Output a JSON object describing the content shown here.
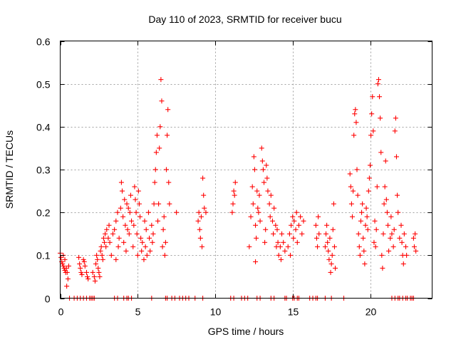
{
  "chart_data": {
    "type": "scatter",
    "title": "Day 110 of 2023, SRMTID for receiver bucu",
    "xlabel": "GPS time / hours",
    "ylabel": "SRMTID / TECUs",
    "xlim": [
      0,
      24
    ],
    "ylim": [
      0,
      0.6
    ],
    "xticks": [
      0,
      5,
      10,
      15,
      20
    ],
    "xtick_labels": [
      "0",
      "5",
      "10",
      "15",
      "20"
    ],
    "yticks": [
      0,
      0.1,
      0.2,
      0.3,
      0.4,
      0.5,
      0.6
    ],
    "ytick_labels": [
      "0",
      "0.1",
      "0.2",
      "0.3",
      "0.4",
      "0.5",
      "0.6"
    ],
    "grid": true,
    "marker": "plus",
    "series": [
      {
        "name": "SRMTID",
        "color": "#ff0000",
        "points": [
          [
            0.0,
            0.105
          ],
          [
            0.05,
            0.095
          ],
          [
            0.1,
            0.085
          ],
          [
            0.15,
            0.08
          ],
          [
            0.2,
            0.075
          ],
          [
            0.25,
            0.07
          ],
          [
            0.3,
            0.065
          ],
          [
            0.35,
            0.06
          ],
          [
            0.4,
            0.07
          ],
          [
            0.45,
            0.06
          ],
          [
            0.5,
            0.045
          ],
          [
            0.42,
            0.028
          ],
          [
            0.55,
            0.075
          ],
          [
            0.3,
            0.09
          ],
          [
            0.2,
            0.1
          ],
          [
            1.2,
            0.095
          ],
          [
            1.25,
            0.08
          ],
          [
            1.3,
            0.07
          ],
          [
            1.35,
            0.06
          ],
          [
            1.4,
            0.055
          ],
          [
            1.5,
            0.09
          ],
          [
            1.55,
            0.085
          ],
          [
            1.6,
            0.075
          ],
          [
            1.7,
            0.06
          ],
          [
            1.75,
            0.05
          ],
          [
            1.8,
            0.045
          ],
          [
            2.1,
            0.06
          ],
          [
            2.2,
            0.05
          ],
          [
            2.25,
            0.04
          ],
          [
            2.3,
            0.08
          ],
          [
            2.35,
            0.1
          ],
          [
            2.4,
            0.09
          ],
          [
            2.45,
            0.07
          ],
          [
            2.5,
            0.06
          ],
          [
            2.55,
            0.05
          ],
          [
            2.6,
            0.11
          ],
          [
            2.65,
            0.12
          ],
          [
            2.7,
            0.1
          ],
          [
            2.75,
            0.09
          ],
          [
            2.8,
            0.14
          ],
          [
            2.85,
            0.13
          ],
          [
            2.9,
            0.15
          ],
          [
            2.95,
            0.12
          ],
          [
            3.0,
            0.16
          ],
          [
            3.1,
            0.14
          ],
          [
            3.15,
            0.17
          ],
          [
            3.2,
            0.13
          ],
          [
            3.3,
            0.1
          ],
          [
            3.4,
            0.15
          ],
          [
            3.5,
            0.16
          ],
          [
            3.6,
            0.18
          ],
          [
            3.7,
            0.2
          ],
          [
            3.75,
            0.12
          ],
          [
            3.8,
            0.14
          ],
          [
            3.9,
            0.21
          ],
          [
            3.95,
            0.27
          ],
          [
            4.0,
            0.25
          ],
          [
            4.05,
            0.19
          ],
          [
            4.1,
            0.13
          ],
          [
            4.15,
            0.23
          ],
          [
            4.2,
            0.17
          ],
          [
            4.3,
            0.22
          ],
          [
            4.35,
            0.16
          ],
          [
            4.4,
            0.21
          ],
          [
            4.45,
            0.15
          ],
          [
            4.5,
            0.2
          ],
          [
            4.55,
            0.24
          ],
          [
            4.6,
            0.18
          ],
          [
            4.7,
            0.12
          ],
          [
            4.75,
            0.17
          ],
          [
            4.8,
            0.26
          ],
          [
            4.85,
            0.23
          ],
          [
            4.9,
            0.2
          ],
          [
            4.95,
            0.15
          ],
          [
            5.0,
            0.1
          ],
          [
            5.05,
            0.25
          ],
          [
            5.1,
            0.22
          ],
          [
            5.15,
            0.19
          ],
          [
            5.2,
            0.14
          ],
          [
            5.25,
            0.11
          ],
          [
            5.3,
            0.13
          ],
          [
            5.4,
            0.09
          ],
          [
            5.5,
            0.12
          ],
          [
            5.55,
            0.16
          ],
          [
            5.6,
            0.1
          ],
          [
            5.7,
            0.2
          ],
          [
            5.75,
            0.14
          ],
          [
            5.8,
            0.11
          ],
          [
            5.9,
            0.17
          ],
          [
            5.95,
            0.13
          ],
          [
            6.0,
            0.15
          ],
          [
            6.05,
            0.22
          ],
          [
            6.1,
            0.27
          ],
          [
            6.15,
            0.3
          ],
          [
            6.2,
            0.34
          ],
          [
            6.25,
            0.38
          ],
          [
            6.3,
            0.18
          ],
          [
            6.35,
            0.22
          ],
          [
            6.4,
            0.35
          ],
          [
            6.45,
            0.4
          ],
          [
            6.5,
            0.51
          ],
          [
            6.55,
            0.46
          ],
          [
            6.6,
            0.12
          ],
          [
            6.65,
            0.16
          ],
          [
            6.7,
            0.19
          ],
          [
            6.75,
            0.1
          ],
          [
            6.8,
            0.13
          ],
          [
            6.85,
            0.3
          ],
          [
            6.9,
            0.38
          ],
          [
            6.95,
            0.44
          ],
          [
            7.0,
            0.27
          ],
          [
            7.05,
            0.22
          ],
          [
            7.5,
            0.2
          ],
          [
            3.6,
            0.09
          ],
          [
            4.25,
            0.11
          ],
          [
            5.45,
            0.18
          ],
          [
            8.9,
            0.18
          ],
          [
            8.95,
            0.2
          ],
          [
            9.0,
            0.16
          ],
          [
            9.05,
            0.14
          ],
          [
            9.1,
            0.19
          ],
          [
            9.15,
            0.12
          ],
          [
            9.2,
            0.28
          ],
          [
            9.25,
            0.24
          ],
          [
            9.3,
            0.21
          ],
          [
            9.4,
            0.2
          ],
          [
            11.1,
            0.2
          ],
          [
            11.15,
            0.22
          ],
          [
            11.2,
            0.25
          ],
          [
            11.25,
            0.24
          ],
          [
            11.3,
            0.27
          ],
          [
            12.2,
            0.12
          ],
          [
            12.3,
            0.19
          ],
          [
            12.4,
            0.26
          ],
          [
            12.45,
            0.22
          ],
          [
            12.5,
            0.33
          ],
          [
            12.55,
            0.3
          ],
          [
            12.6,
            0.17
          ],
          [
            12.65,
            0.14
          ],
          [
            12.7,
            0.25
          ],
          [
            12.75,
            0.21
          ],
          [
            12.8,
            0.2
          ],
          [
            12.85,
            0.24
          ],
          [
            12.9,
            0.18
          ],
          [
            13.0,
            0.35
          ],
          [
            13.05,
            0.32
          ],
          [
            13.1,
            0.3
          ],
          [
            13.15,
            0.27
          ],
          [
            13.2,
            0.13
          ],
          [
            13.25,
            0.16
          ],
          [
            13.3,
            0.31
          ],
          [
            13.35,
            0.28
          ],
          [
            13.4,
            0.25
          ],
          [
            13.5,
            0.22
          ],
          [
            13.55,
            0.19
          ],
          [
            13.6,
            0.24
          ],
          [
            13.7,
            0.18
          ],
          [
            13.75,
            0.15
          ],
          [
            13.8,
            0.21
          ],
          [
            13.9,
            0.17
          ],
          [
            13.95,
            0.12
          ],
          [
            14.0,
            0.16
          ],
          [
            14.05,
            0.13
          ],
          [
            14.1,
            0.1
          ],
          [
            14.2,
            0.12
          ],
          [
            14.25,
            0.09
          ],
          [
            14.3,
            0.15
          ],
          [
            14.4,
            0.13
          ],
          [
            14.5,
            0.11
          ],
          [
            12.6,
            0.085
          ],
          [
            14.7,
            0.12
          ],
          [
            14.8,
            0.15
          ],
          [
            14.85,
            0.1
          ],
          [
            14.9,
            0.17
          ],
          [
            15.0,
            0.19
          ],
          [
            15.05,
            0.14
          ],
          [
            15.1,
            0.18
          ],
          [
            15.2,
            0.16
          ],
          [
            15.25,
            0.2
          ],
          [
            15.3,
            0.13
          ],
          [
            15.4,
            0.17
          ],
          [
            15.5,
            0.19
          ],
          [
            15.6,
            0.15
          ],
          [
            15.7,
            0.18
          ],
          [
            16.5,
            0.17
          ],
          [
            16.55,
            0.14
          ],
          [
            16.6,
            0.12
          ],
          [
            16.65,
            0.19
          ],
          [
            16.7,
            0.15
          ],
          [
            17.1,
            0.12
          ],
          [
            17.15,
            0.15
          ],
          [
            17.2,
            0.17
          ],
          [
            17.25,
            0.13
          ],
          [
            17.3,
            0.11
          ],
          [
            17.35,
            0.09
          ],
          [
            17.4,
            0.14
          ],
          [
            17.45,
            0.06
          ],
          [
            17.5,
            0.08
          ],
          [
            17.55,
            0.1
          ],
          [
            17.6,
            0.16
          ],
          [
            17.65,
            0.22
          ],
          [
            17.7,
            0.12
          ],
          [
            17.75,
            0.07
          ],
          [
            18.7,
            0.29
          ],
          [
            18.75,
            0.26
          ],
          [
            18.8,
            0.22
          ],
          [
            18.85,
            0.19
          ],
          [
            18.9,
            0.25
          ],
          [
            18.95,
            0.38
          ],
          [
            19.0,
            0.43
          ],
          [
            19.05,
            0.44
          ],
          [
            19.1,
            0.41
          ],
          [
            19.15,
            0.3
          ],
          [
            19.2,
            0.24
          ],
          [
            19.25,
            0.15
          ],
          [
            19.3,
            0.12
          ],
          [
            19.35,
            0.1
          ],
          [
            19.4,
            0.18
          ],
          [
            19.45,
            0.2
          ],
          [
            19.5,
            0.22
          ],
          [
            19.55,
            0.14
          ],
          [
            19.6,
            0.11
          ],
          [
            19.65,
            0.08
          ],
          [
            19.7,
            0.17
          ],
          [
            19.75,
            0.21
          ],
          [
            19.8,
            0.19
          ],
          [
            19.85,
            0.16
          ],
          [
            19.9,
            0.25
          ],
          [
            19.95,
            0.28
          ],
          [
            20.0,
            0.31
          ],
          [
            20.05,
            0.38
          ],
          [
            20.1,
            0.43
          ],
          [
            20.15,
            0.47
          ],
          [
            20.2,
            0.39
          ],
          [
            20.25,
            0.13
          ],
          [
            20.3,
            0.18
          ],
          [
            20.35,
            0.12
          ],
          [
            20.4,
            0.16
          ],
          [
            20.45,
            0.26
          ],
          [
            20.5,
            0.5
          ],
          [
            20.55,
            0.51
          ],
          [
            20.6,
            0.47
          ],
          [
            20.65,
            0.42
          ],
          [
            20.7,
            0.34
          ],
          [
            20.75,
            0.1
          ],
          [
            20.8,
            0.07
          ],
          [
            20.85,
            0.15
          ],
          [
            20.9,
            0.22
          ],
          [
            20.95,
            0.26
          ],
          [
            21.0,
            0.32
          ],
          [
            21.05,
            0.23
          ],
          [
            21.1,
            0.2
          ],
          [
            21.15,
            0.17
          ],
          [
            21.2,
            0.11
          ],
          [
            21.3,
            0.14
          ],
          [
            21.35,
            0.19
          ],
          [
            21.4,
            0.15
          ],
          [
            21.5,
            0.12
          ],
          [
            21.55,
            0.16
          ],
          [
            21.6,
            0.39
          ],
          [
            21.65,
            0.42
          ],
          [
            21.7,
            0.33
          ],
          [
            21.75,
            0.24
          ],
          [
            21.8,
            0.2
          ],
          [
            21.9,
            0.14
          ],
          [
            22.0,
            0.17
          ],
          [
            22.05,
            0.13
          ],
          [
            22.1,
            0.1
          ],
          [
            22.15,
            0.08
          ],
          [
            22.2,
            0.15
          ],
          [
            22.3,
            0.12
          ],
          [
            22.35,
            0.1
          ],
          [
            22.8,
            0.14
          ],
          [
            22.85,
            0.12
          ],
          [
            22.9,
            0.15
          ],
          [
            22.95,
            0.11
          ]
        ]
      }
    ],
    "zero_points_x": [
      0.6,
      0.9,
      1.1,
      1.3,
      1.5,
      1.7,
      1.9,
      2.0,
      2.1,
      2.2,
      3.5,
      3.7,
      4.1,
      4.3,
      4.4,
      4.6,
      5.9,
      6.8,
      6.9,
      7.2,
      7.4,
      7.7,
      7.9,
      8.1,
      8.3,
      8.7,
      9.2,
      11.0,
      11.2,
      11.7,
      11.9,
      12.1,
      12.7,
      12.9,
      13.6,
      13.8,
      14.5,
      14.6,
      15.0,
      15.1,
      15.3,
      15.4,
      16.1,
      16.3,
      16.5,
      16.6,
      17.1,
      17.5,
      18.3,
      21.4,
      21.6,
      21.8,
      21.9,
      22.1,
      22.3,
      22.4,
      22.6,
      22.7,
      22.8
    ]
  }
}
